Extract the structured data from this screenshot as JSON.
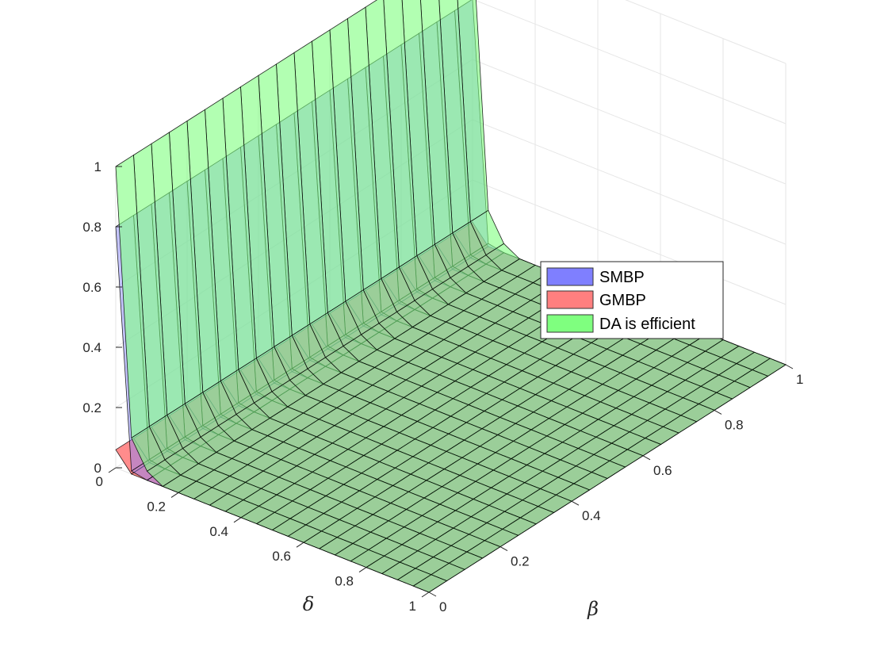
{
  "chart_data": {
    "type": "surface",
    "xlabel": "δ",
    "ylabel": "β",
    "zlabel": "",
    "xlim": [
      0,
      1
    ],
    "ylim": [
      0,
      1
    ],
    "zlim": [
      0,
      1
    ],
    "x_ticks": [
      "0",
      "0.2",
      "0.4",
      "0.6",
      "0.8",
      "1"
    ],
    "y_ticks": [
      "0",
      "0.2",
      "0.4",
      "0.6",
      "0.8",
      "1"
    ],
    "z_ticks": [
      "0",
      "0.2",
      "0.4",
      "0.6",
      "0.8",
      "1"
    ],
    "grid": true,
    "legend_position": "right",
    "grid_resolution": 21,
    "series": [
      {
        "name": "SMBP",
        "color": "#7f7fff",
        "profile_over_delta": {
          "delta": [
            0,
            0.05,
            0.1,
            1
          ],
          "value": [
            0.8,
            0.01,
            0,
            0
          ]
        }
      },
      {
        "name": "GMBP",
        "color": "#ff7f7f",
        "profile_over_delta": {
          "delta": [
            0,
            0.05,
            1
          ],
          "value": [
            0.06,
            0,
            0
          ]
        }
      },
      {
        "name": "DA is efficient",
        "color": "#7fff7f",
        "profile_over_delta": {
          "delta": [
            0,
            0.05,
            0.1,
            0.15,
            1
          ],
          "value": [
            1,
            0.12,
            0.03,
            0,
            0
          ]
        }
      }
    ]
  }
}
